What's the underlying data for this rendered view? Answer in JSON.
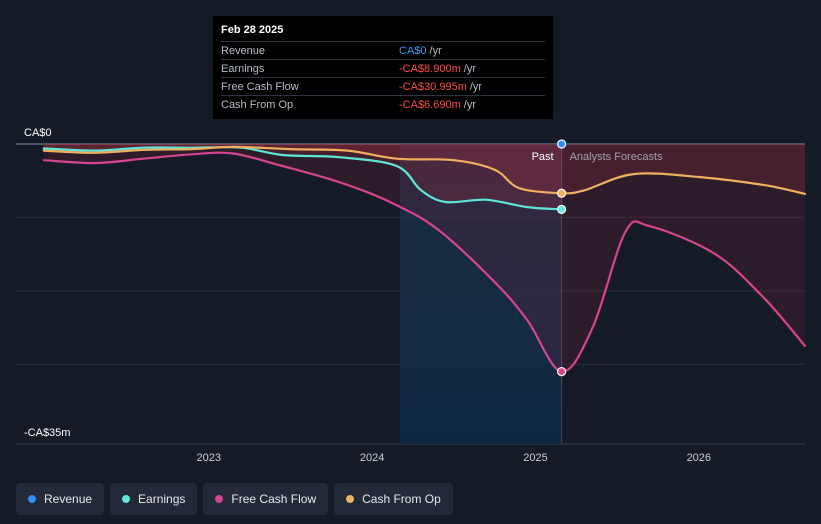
{
  "tooltip": {
    "date": "Feb 28 2025",
    "rows": [
      {
        "label": "Revenue",
        "value": "CA$0",
        "unit": "/yr",
        "negative": false
      },
      {
        "label": "Earnings",
        "value": "-CA$8.900m",
        "unit": "/yr",
        "negative": true
      },
      {
        "label": "Free Cash Flow",
        "value": "-CA$30.995m",
        "unit": "/yr",
        "negative": true
      },
      {
        "label": "Cash From Op",
        "value": "-CA$6.690m",
        "unit": "/yr",
        "negative": true
      }
    ]
  },
  "labels": {
    "past": "Past",
    "forecast": "Analysts Forecasts"
  },
  "legend": [
    {
      "label": "Revenue",
      "color": "#2f8ff0"
    },
    {
      "label": "Earnings",
      "color": "#5ee6d8"
    },
    {
      "label": "Free Cash Flow",
      "color": "#d6438e"
    },
    {
      "label": "Cash From Op",
      "color": "#f0b060"
    }
  ],
  "chart_data": {
    "type": "line",
    "y_unit": "CA$ millions",
    "ylim": [
      -35,
      0
    ],
    "y_tick_labels": [
      {
        "value": 0,
        "label": "CA$0"
      },
      {
        "value": -35,
        "label": "-CA$35m"
      }
    ],
    "x_tick_labels": [
      {
        "value": 2023.0,
        "label": "2023"
      },
      {
        "value": 2024.0,
        "label": "2024"
      },
      {
        "value": 2025.0,
        "label": "2025"
      },
      {
        "value": 2026.0,
        "label": "2026"
      }
    ],
    "xlim": [
      2021.82,
      2026.65
    ],
    "past_end": 2025.16,
    "highlight_start": 2024.17,
    "grid": true,
    "series": [
      {
        "name": "Revenue",
        "color": "#2f8ff0",
        "points": [
          [
            2025.16,
            0
          ]
        ]
      },
      {
        "name": "Earnings",
        "color": "#5ee6d8",
        "points": [
          [
            2021.99,
            -0.6
          ],
          [
            2022.3,
            -0.9
          ],
          [
            2022.6,
            -0.5
          ],
          [
            2022.9,
            -0.5
          ],
          [
            2023.2,
            -0.5
          ],
          [
            2023.45,
            -1.5
          ],
          [
            2023.8,
            -1.8
          ],
          [
            2024.15,
            -3.0
          ],
          [
            2024.3,
            -6.3
          ],
          [
            2024.45,
            -7.9
          ],
          [
            2024.7,
            -7.6
          ],
          [
            2024.95,
            -8.6
          ],
          [
            2025.16,
            -8.9
          ]
        ]
      },
      {
        "name": "Free Cash Flow",
        "color": "#d6438e",
        "points": [
          [
            2021.99,
            -2.2
          ],
          [
            2022.3,
            -2.6
          ],
          [
            2022.6,
            -2.0
          ],
          [
            2022.9,
            -1.4
          ],
          [
            2023.15,
            -1.3
          ],
          [
            2023.45,
            -3.0
          ],
          [
            2023.8,
            -5.2
          ],
          [
            2024.1,
            -7.8
          ],
          [
            2024.4,
            -11.6
          ],
          [
            2024.75,
            -18.8
          ],
          [
            2024.95,
            -24.0
          ],
          [
            2025.16,
            -31.0
          ],
          [
            2025.35,
            -25.0
          ],
          [
            2025.55,
            -12.0
          ],
          [
            2025.7,
            -11.2
          ],
          [
            2026.1,
            -15.0
          ],
          [
            2026.4,
            -21.0
          ],
          [
            2026.65,
            -27.5
          ]
        ]
      },
      {
        "name": "Cash From Op",
        "color": "#f0b060",
        "points": [
          [
            2021.99,
            -0.9
          ],
          [
            2022.3,
            -1.2
          ],
          [
            2022.6,
            -0.8
          ],
          [
            2022.9,
            -0.7
          ],
          [
            2023.15,
            -0.4
          ],
          [
            2023.5,
            -0.7
          ],
          [
            2023.85,
            -0.9
          ],
          [
            2024.15,
            -2.0
          ],
          [
            2024.5,
            -2.2
          ],
          [
            2024.75,
            -3.5
          ],
          [
            2024.9,
            -6.0
          ],
          [
            2025.16,
            -6.7
          ],
          [
            2025.3,
            -6.3
          ],
          [
            2025.6,
            -4.1
          ],
          [
            2026.0,
            -4.5
          ],
          [
            2026.4,
            -5.6
          ],
          [
            2026.65,
            -6.8
          ]
        ]
      }
    ]
  }
}
